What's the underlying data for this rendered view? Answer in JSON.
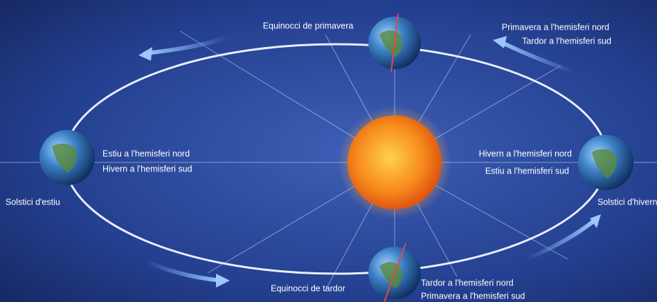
{
  "spring_equinox": {
    "label": "Equinocci de primavera",
    "north": "Primavera a l'hemisferi nord",
    "south": "Tardor a l'hemisferi sud"
  },
  "summer_solstice": {
    "label": "Solstici d'estiu",
    "north": "Estiu a l'hemisferi nord",
    "south": "Hivern a l'hemisferi sud"
  },
  "winter_solstice": {
    "label": "Solstici d'hivern",
    "north": "Hivern a l'hemisferi nord",
    "south": "Estiu a l'hemisferi sud"
  },
  "autumn_equinox": {
    "label": "Equinocci de tardor",
    "north": "Tardor a l'hemisferi nord",
    "south": "Primavera a l'hemisferi sud"
  }
}
